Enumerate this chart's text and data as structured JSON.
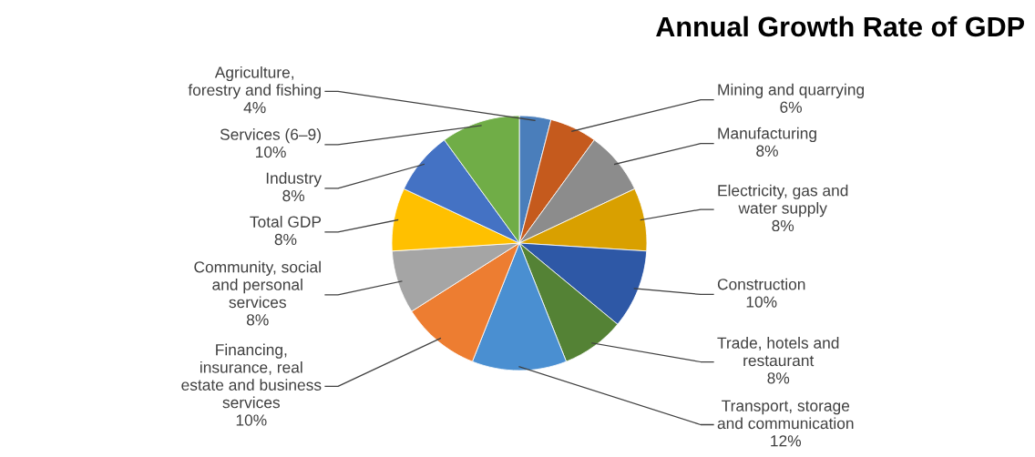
{
  "chart_data": {
    "type": "pie",
    "title": "Annual Growth Rate of GDP",
    "categories": [
      "Agriculture, forestry and fishing",
      "Mining and quarrying",
      "Manufacturing",
      "Electricity, gas and water supply",
      "Construction",
      "Trade, hotels and restaurant",
      "Transport, storage and communication",
      "Financing, insurance, real estate and business services",
      "Community, social and personal services",
      "Total GDP",
      "Industry",
      "Services (6–9)"
    ],
    "values": [
      4,
      6,
      8,
      8,
      10,
      8,
      12,
      10,
      8,
      8,
      8,
      10
    ],
    "colors": [
      "#4a7ebb",
      "#c55a1d",
      "#8c8c8c",
      "#d9a000",
      "#2e58a6",
      "#548235",
      "#4a8fd1",
      "#ed7d31",
      "#a5a5a5",
      "#ffc000",
      "#4472c4",
      "#70ad47"
    ],
    "value_labels": [
      "4%",
      "6%",
      "8%",
      "8%",
      "10%",
      "8%",
      "12%",
      "10%",
      "8%",
      "8%",
      "8%",
      "10%"
    ]
  }
}
